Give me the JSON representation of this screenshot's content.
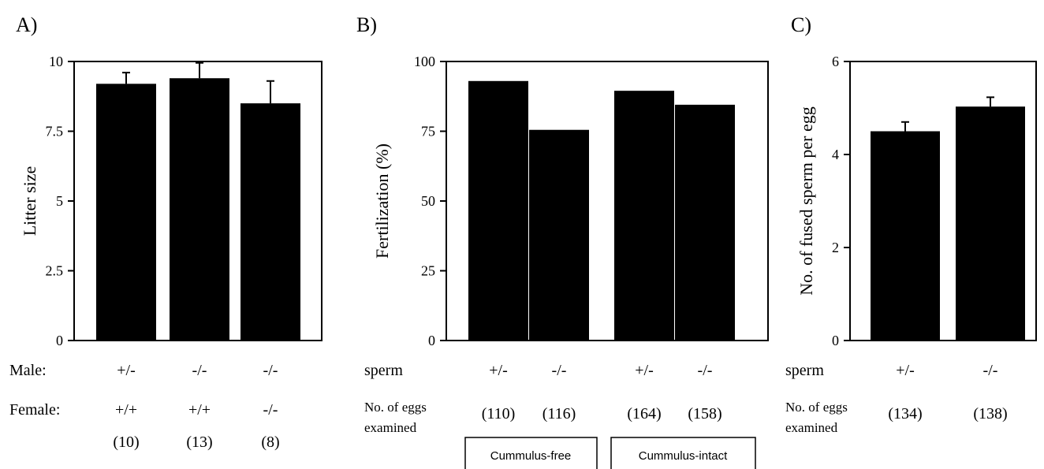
{
  "chart_data": [
    {
      "type": "bar",
      "panel_label": "A)",
      "ylabel": "Litter size",
      "ylim": [
        0,
        10
      ],
      "yticks": [
        "0",
        "2.5",
        "5",
        "7.5",
        "10"
      ],
      "categories": [
        "+/-",
        "-/-",
        "-/-"
      ],
      "values": [
        9.2,
        9.4,
        8.5
      ],
      "errors": [
        0.4,
        0.55,
        0.8
      ],
      "row_labels": [
        "Male:",
        "Female:"
      ],
      "rows": [
        [
          "+/-",
          "-/-",
          "-/-"
        ],
        [
          "+/+",
          "+/+",
          "-/-"
        ],
        [
          "(10)",
          "(13)",
          "(8)"
        ]
      ]
    },
    {
      "type": "bar",
      "panel_label": "B)",
      "ylabel": "Fertilization (%)",
      "ylim": [
        0,
        100
      ],
      "yticks": [
        "0",
        "25",
        "50",
        "75",
        "100"
      ],
      "categories": [
        "+/-",
        "-/-",
        "+/-",
        "-/-"
      ],
      "values": [
        93,
        75.5,
        89.5,
        84.5
      ],
      "row_labels": [
        "sperm",
        "No. of eggs",
        "examined"
      ],
      "rows": [
        [
          "+/-",
          "-/-",
          "+/-",
          "-/-"
        ],
        [
          "(110)",
          "(116)",
          "(164)",
          "(158)"
        ]
      ],
      "groups": [
        "Cummulus-free",
        "Cummulus-intact"
      ]
    },
    {
      "type": "bar",
      "panel_label": "C)",
      "ylabel": "No. of fused sperm per egg",
      "ylim": [
        0,
        6
      ],
      "yticks": [
        "0",
        "2",
        "4",
        "6"
      ],
      "categories": [
        "+/-",
        "-/-"
      ],
      "values": [
        4.5,
        5.03
      ],
      "errors": [
        0.2,
        0.2
      ],
      "row_labels": [
        "sperm",
        "No. of eggs",
        "examined"
      ],
      "rows": [
        [
          "+/-",
          "-/-"
        ],
        [
          "(134)",
          "(138)"
        ]
      ]
    }
  ]
}
